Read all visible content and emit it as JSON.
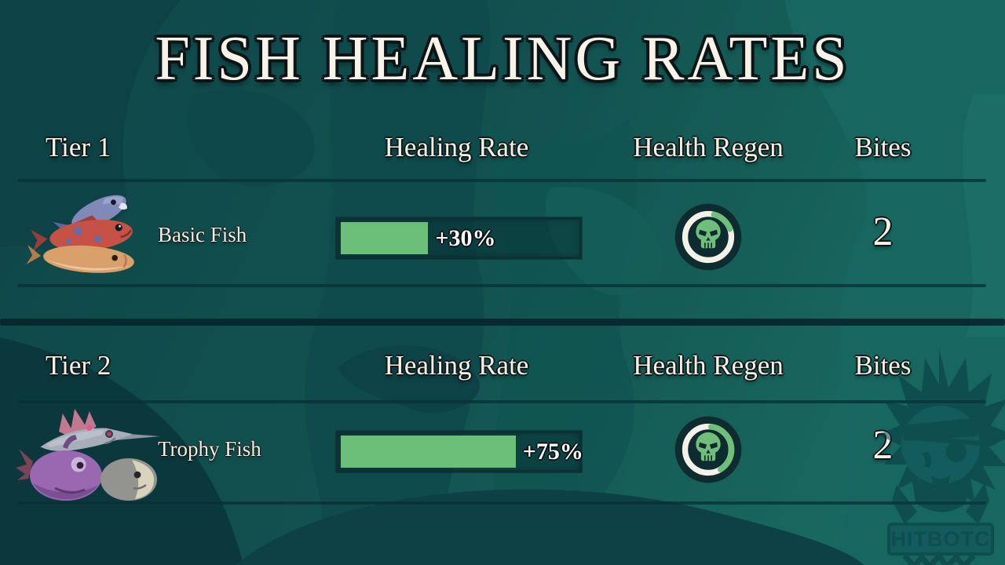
{
  "title": "FISH HEALING RATES",
  "columns": {
    "healing_rate": "Healing Rate",
    "health_regen": "Health Regen",
    "bites": "Bites"
  },
  "sections": [
    {
      "tier_label": "Tier 1",
      "fish_name": "Basic Fish",
      "healing_rate": "+30%",
      "healing_rate_value": 30,
      "bar_fill_pct": 37,
      "health_regen_icon": "skull-regen-icon",
      "bites": "2"
    },
    {
      "tier_label": "Tier 2",
      "fish_name": "Trophy Fish",
      "healing_rate": "+75%",
      "healing_rate_value": 75,
      "bar_fill_pct": 74,
      "health_regen_icon": "skull-regen-icon",
      "bites": "2"
    }
  ],
  "watermark": {
    "text": "HITBOTC"
  },
  "colors": {
    "background_teal": "#11514f",
    "bar_fill_green": "#6cbf79",
    "skull_green": "#6fbe7a",
    "icon_dark_navy": "#0e2b2f",
    "text_cream": "#f6f0e2",
    "rule_dark": "#093136"
  }
}
